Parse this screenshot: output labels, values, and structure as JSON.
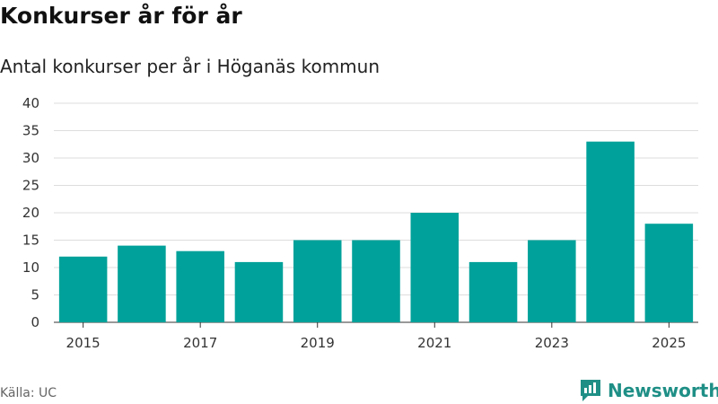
{
  "header": {
    "title": "Konkurser år för år",
    "subtitle": "Antal konkurser per år i Höganäs kommun"
  },
  "footer": {
    "source": "Källa: UC",
    "brand": "Newsworthy"
  },
  "colors": {
    "bar": "#00a19a",
    "brand": "#1f8f86",
    "grid": "#dddddd"
  },
  "chart_data": {
    "type": "bar",
    "title": "Konkurser år för år",
    "subtitle": "Antal konkurser per år i Höganäs kommun",
    "categories": [
      2015,
      2016,
      2017,
      2018,
      2019,
      2020,
      2021,
      2022,
      2023,
      2024,
      2025
    ],
    "values": [
      12,
      14,
      13,
      11,
      15,
      15,
      20,
      11,
      15,
      33,
      18
    ],
    "x_tick_labels": [
      "2015",
      "2017",
      "2019",
      "2021",
      "2023",
      "2025"
    ],
    "y_ticks": [
      0,
      5,
      10,
      15,
      20,
      25,
      30,
      35,
      40
    ],
    "ylim": [
      0,
      40
    ],
    "grid": true,
    "legend": "none"
  }
}
